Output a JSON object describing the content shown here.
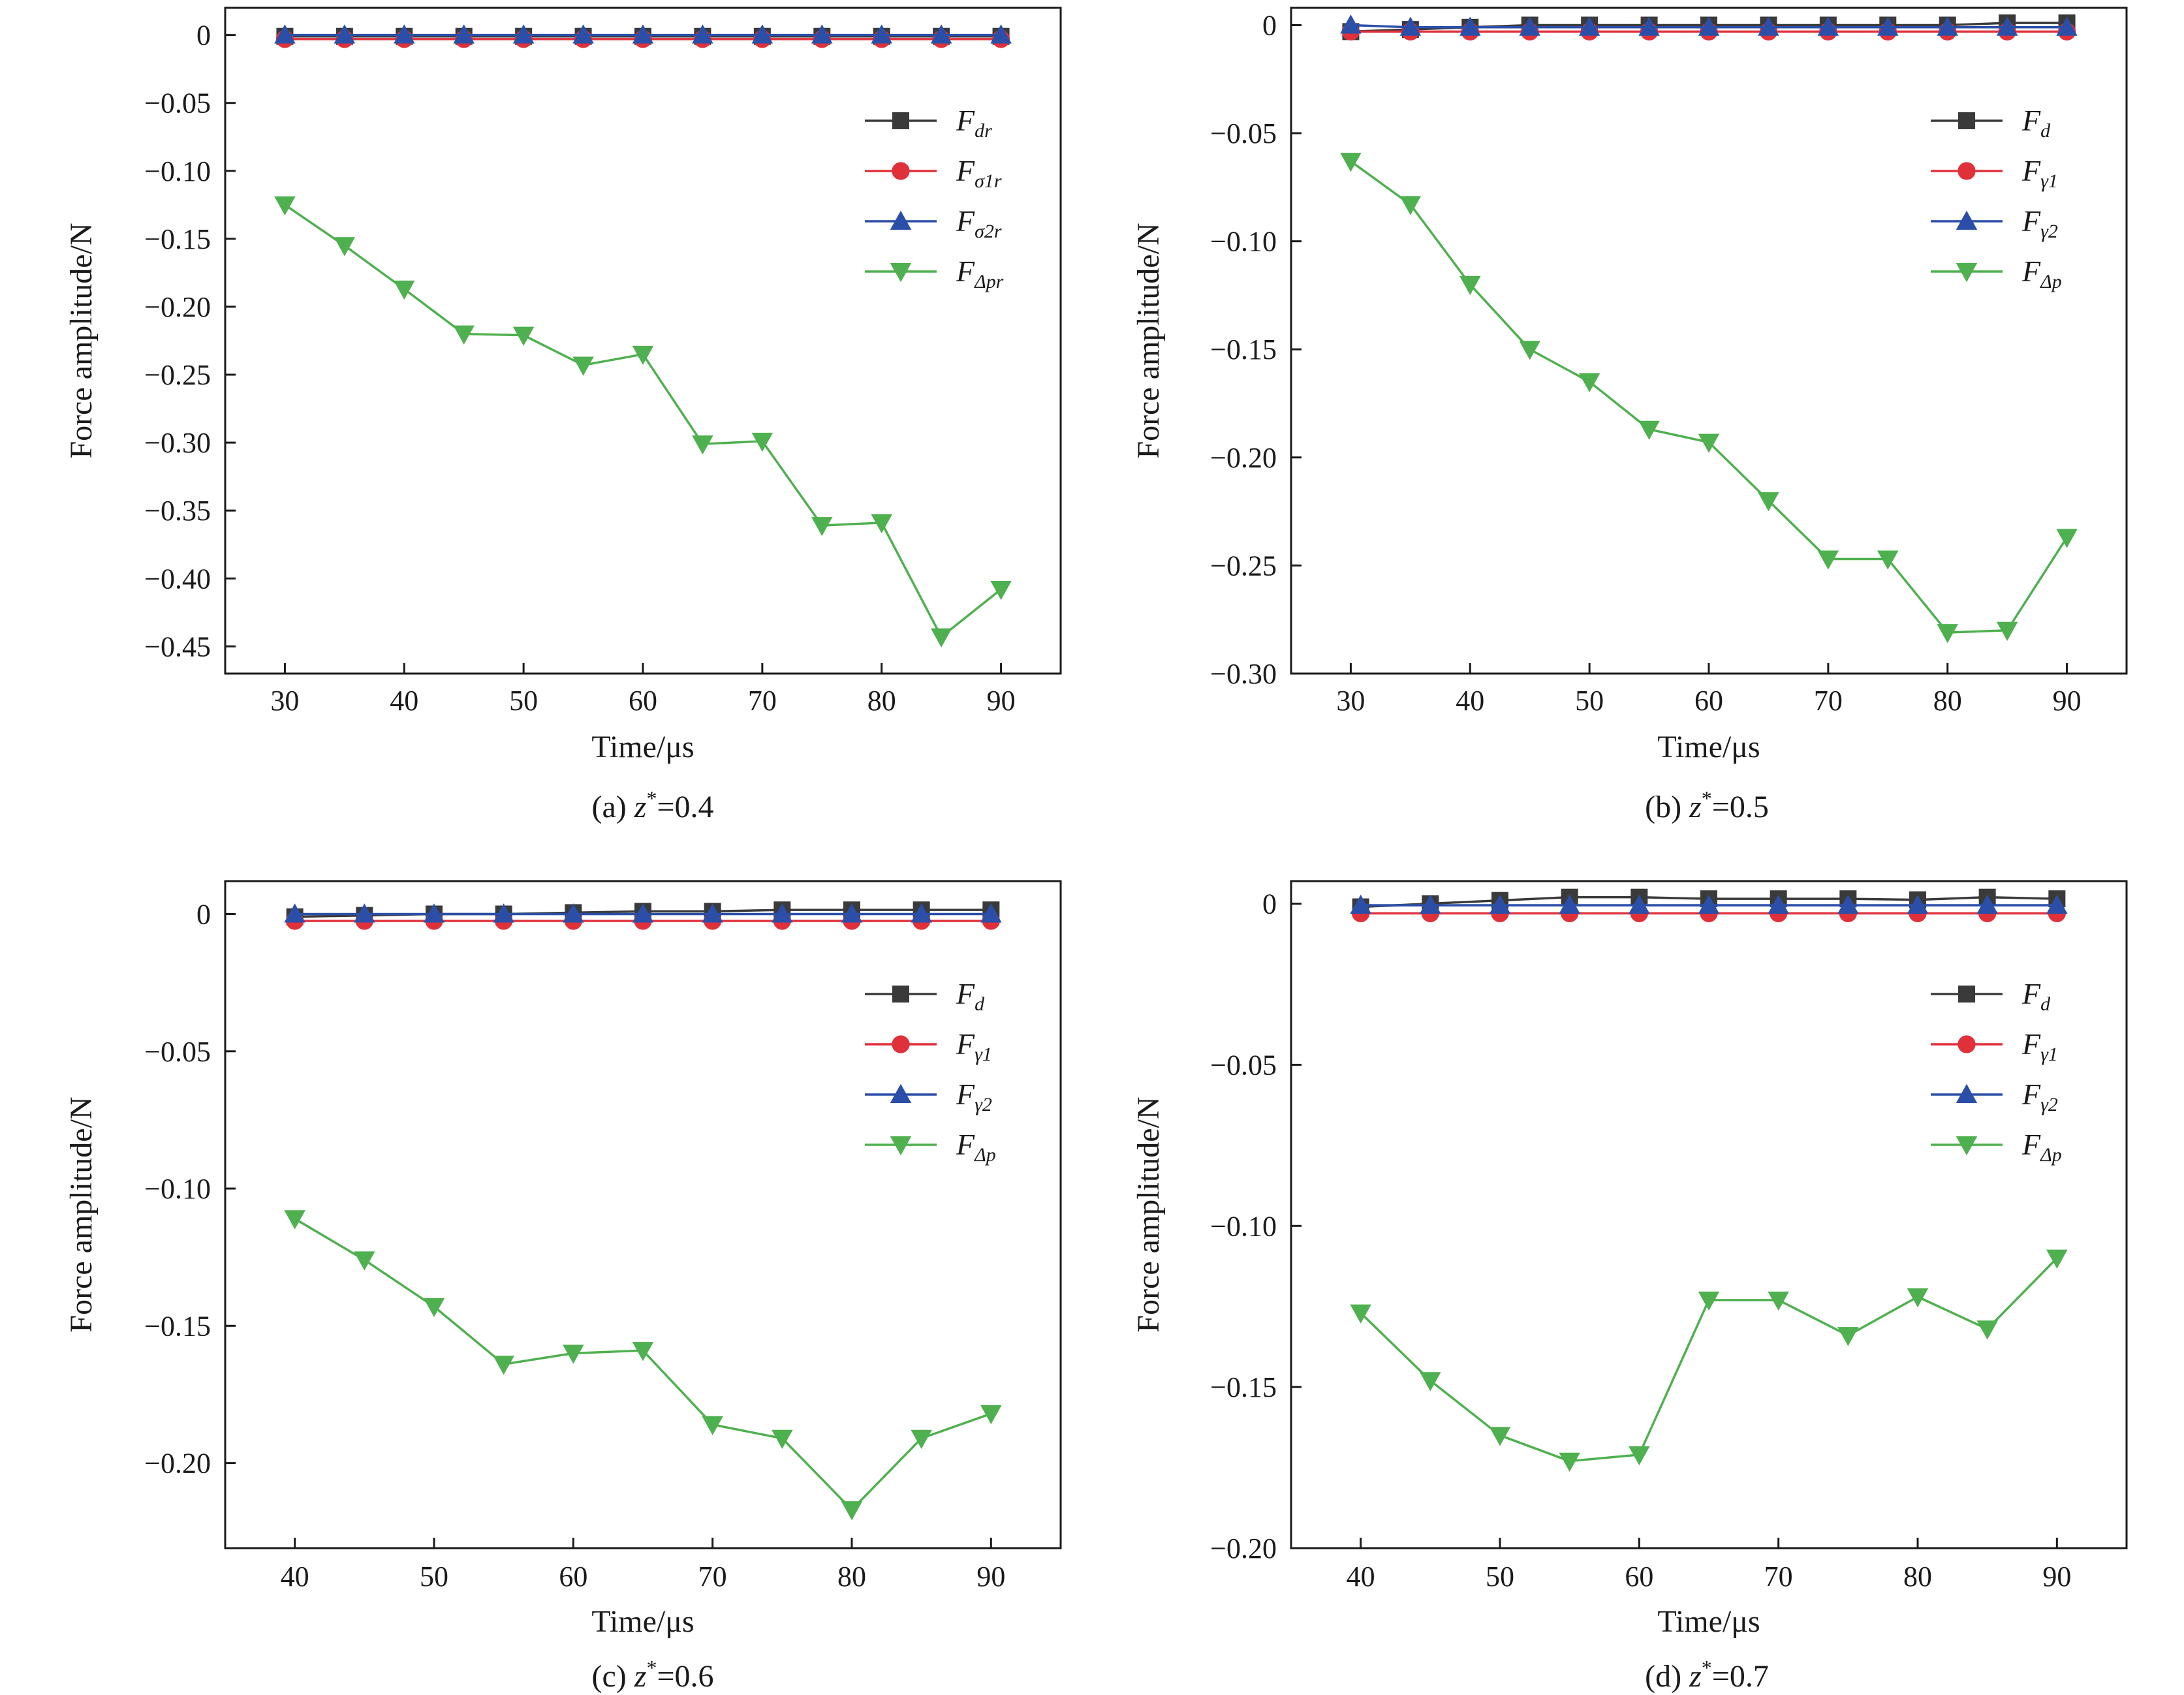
{
  "figure": {
    "panels": [
      {
        "caption_prefix": "(a) ",
        "caption_var": "z",
        "caption_sup": "*",
        "caption_value": "=0.4"
      },
      {
        "caption_prefix": "(b) ",
        "caption_var": "z",
        "caption_sup": "*",
        "caption_value": "=0.5"
      },
      {
        "caption_prefix": "(c) ",
        "caption_var": "z",
        "caption_sup": "*",
        "caption_value": "=0.6"
      },
      {
        "caption_prefix": "(d) ",
        "caption_var": "z",
        "caption_sup": "*",
        "caption_value": "=0.7"
      }
    ]
  },
  "chart_data": [
    {
      "type": "line",
      "xlabel": "Time/μs",
      "ylabel": "Force amplitude/N",
      "xlim": [
        25,
        95
      ],
      "ylim": [
        -0.47,
        0.02
      ],
      "xticks": [
        30,
        40,
        50,
        60,
        70,
        80,
        90
      ],
      "yticks": [
        0,
        -0.05,
        -0.1,
        -0.15,
        -0.2,
        -0.25,
        -0.3,
        -0.35,
        -0.4,
        -0.45
      ],
      "ytick_labels": [
        "0",
        "−0.05",
        "−0.10",
        "−0.15",
        "−0.20",
        "−0.25",
        "−0.30",
        "−0.35",
        "−0.40",
        "−0.45"
      ],
      "grid": false,
      "legend_position": "upper-right",
      "x": [
        30,
        35,
        40,
        45,
        50,
        55,
        60,
        65,
        70,
        75,
        80,
        85,
        90
      ],
      "series": [
        {
          "name": "F",
          "name_sub": "dr",
          "color": "#3a3a3a",
          "marker": "square",
          "values": [
            -0.001,
            -0.001,
            -0.001,
            -0.001,
            -0.001,
            -0.001,
            -0.001,
            -0.001,
            -0.001,
            -0.001,
            -0.001,
            -0.001,
            -0.001
          ]
        },
        {
          "name": "F",
          "name_sub": "σ1r",
          "color": "#e0303a",
          "marker": "circle",
          "values": [
            -0.003,
            -0.003,
            -0.003,
            -0.003,
            -0.003,
            -0.003,
            -0.003,
            -0.003,
            -0.003,
            -0.003,
            -0.003,
            -0.003,
            -0.003
          ]
        },
        {
          "name": "F",
          "name_sub": "σ2r",
          "color": "#2b4fa8",
          "marker": "triangle-up",
          "values": [
            0.0,
            0.0,
            0.0,
            0.0,
            0.0,
            0.0,
            0.0,
            0.0,
            0.0,
            0.0,
            0.0,
            0.0,
            0.0
          ]
        },
        {
          "name": "F",
          "name_sub": "Δpr",
          "color": "#4fb04f",
          "marker": "triangle-down",
          "values": [
            -0.125,
            -0.155,
            -0.187,
            -0.22,
            -0.221,
            -0.243,
            -0.235,
            -0.301,
            -0.299,
            -0.361,
            -0.359,
            -0.443,
            -0.408
          ]
        }
      ]
    },
    {
      "type": "line",
      "xlabel": "Time/μs",
      "ylabel": "Force amplitude/N",
      "xlim": [
        25,
        95
      ],
      "ylim": [
        -0.3,
        0.008
      ],
      "xticks": [
        30,
        40,
        50,
        60,
        70,
        80,
        90
      ],
      "yticks": [
        0,
        -0.05,
        -0.1,
        -0.15,
        -0.2,
        -0.25,
        -0.3
      ],
      "ytick_labels": [
        "0",
        "−0.05",
        "−0.10",
        "−0.15",
        "−0.20",
        "−0.25",
        "−0.30"
      ],
      "grid": false,
      "legend_position": "upper-right",
      "x": [
        30,
        35,
        40,
        45,
        50,
        55,
        60,
        65,
        70,
        75,
        80,
        85,
        90
      ],
      "series": [
        {
          "name": "F",
          "name_sub": "d",
          "color": "#3a3a3a",
          "marker": "square",
          "values": [
            -0.003,
            -0.002,
            -0.001,
            0.0,
            0.0,
            0.0,
            0.0,
            0.0,
            0.0,
            0.0,
            0.0,
            0.001,
            0.001
          ]
        },
        {
          "name": "F",
          "name_sub": "γ1",
          "color": "#e0303a",
          "marker": "circle",
          "values": [
            -0.003,
            -0.003,
            -0.003,
            -0.003,
            -0.003,
            -0.003,
            -0.003,
            -0.003,
            -0.003,
            -0.003,
            -0.003,
            -0.003,
            -0.003
          ]
        },
        {
          "name": "F",
          "name_sub": "γ2",
          "color": "#2b4fa8",
          "marker": "triangle-up",
          "values": [
            0.0,
            -0.001,
            -0.001,
            -0.001,
            -0.001,
            -0.001,
            -0.001,
            -0.001,
            -0.001,
            -0.001,
            -0.001,
            -0.001,
            -0.001
          ]
        },
        {
          "name": "F",
          "name_sub": "Δp",
          "color": "#4fb04f",
          "marker": "triangle-down",
          "values": [
            -0.063,
            -0.083,
            -0.12,
            -0.15,
            -0.165,
            -0.187,
            -0.193,
            -0.22,
            -0.247,
            -0.247,
            -0.281,
            -0.28,
            -0.237
          ]
        }
      ]
    },
    {
      "type": "line",
      "xlabel": "Time/μs",
      "ylabel": "Force amplitude/N",
      "xlim": [
        35,
        95
      ],
      "ylim": [
        -0.231,
        0.012
      ],
      "xticks": [
        40,
        50,
        60,
        70,
        80,
        90
      ],
      "yticks": [
        0,
        -0.05,
        -0.1,
        -0.15,
        -0.2
      ],
      "ytick_labels": [
        "0",
        "−0.05",
        "−0.10",
        "−0.15",
        "−0.20"
      ],
      "grid": false,
      "legend_position": "upper-right",
      "x": [
        40,
        45,
        50,
        55,
        60,
        65,
        70,
        75,
        80,
        85,
        90
      ],
      "series": [
        {
          "name": "F",
          "name_sub": "d",
          "color": "#3a3a3a",
          "marker": "square",
          "values": [
            -0.001,
            -0.0005,
            0.0,
            0.0,
            0.0005,
            0.001,
            0.001,
            0.0015,
            0.0015,
            0.0015,
            0.0015
          ]
        },
        {
          "name": "F",
          "name_sub": "γ1",
          "color": "#e0303a",
          "marker": "circle",
          "values": [
            -0.0025,
            -0.0025,
            -0.0025,
            -0.0025,
            -0.0025,
            -0.0025,
            -0.0025,
            -0.0025,
            -0.0025,
            -0.0025,
            -0.0025
          ]
        },
        {
          "name": "F",
          "name_sub": "γ2",
          "color": "#2b4fa8",
          "marker": "triangle-up",
          "values": [
            0.0,
            0.0,
            0.0,
            0.0,
            0.0,
            0.0,
            0.0,
            0.0,
            0.0,
            0.0,
            0.0
          ]
        },
        {
          "name": "F",
          "name_sub": "Δp",
          "color": "#4fb04f",
          "marker": "triangle-down",
          "values": [
            -0.111,
            -0.126,
            -0.143,
            -0.164,
            -0.16,
            -0.159,
            -0.186,
            -0.191,
            -0.217,
            -0.191,
            -0.182
          ]
        }
      ]
    },
    {
      "type": "line",
      "xlabel": "Time/μs",
      "ylabel": "Force amplitude/N",
      "xlim": [
        35,
        95
      ],
      "ylim": [
        -0.2,
        0.007
      ],
      "xticks": [
        40,
        50,
        60,
        70,
        80,
        90
      ],
      "yticks": [
        0,
        -0.05,
        -0.1,
        -0.15,
        -0.2
      ],
      "ytick_labels": [
        "0",
        "−0.05",
        "−0.10",
        "−0.15",
        "−0.20"
      ],
      "grid": false,
      "legend_position": "upper-right",
      "x": [
        40,
        45,
        50,
        55,
        60,
        65,
        70,
        75,
        80,
        85,
        90
      ],
      "series": [
        {
          "name": "F",
          "name_sub": "d",
          "color": "#3a3a3a",
          "marker": "square",
          "values": [
            -0.001,
            0.0,
            0.001,
            0.002,
            0.002,
            0.0015,
            0.0015,
            0.0015,
            0.0012,
            0.002,
            0.0015
          ]
        },
        {
          "name": "F",
          "name_sub": "γ1",
          "color": "#e0303a",
          "marker": "circle",
          "values": [
            -0.003,
            -0.003,
            -0.003,
            -0.003,
            -0.003,
            -0.003,
            -0.003,
            -0.003,
            -0.003,
            -0.003,
            -0.003
          ]
        },
        {
          "name": "F",
          "name_sub": "γ2",
          "color": "#2b4fa8",
          "marker": "triangle-up",
          "values": [
            -0.0005,
            -0.0005,
            -0.0005,
            -0.0005,
            -0.0005,
            -0.0005,
            -0.0005,
            -0.0005,
            -0.0005,
            -0.0005,
            -0.0005
          ]
        },
        {
          "name": "F",
          "name_sub": "Δp",
          "color": "#4fb04f",
          "marker": "triangle-down",
          "values": [
            -0.127,
            -0.148,
            -0.165,
            -0.173,
            -0.171,
            -0.123,
            -0.123,
            -0.134,
            -0.122,
            -0.132,
            -0.11
          ]
        }
      ]
    }
  ]
}
